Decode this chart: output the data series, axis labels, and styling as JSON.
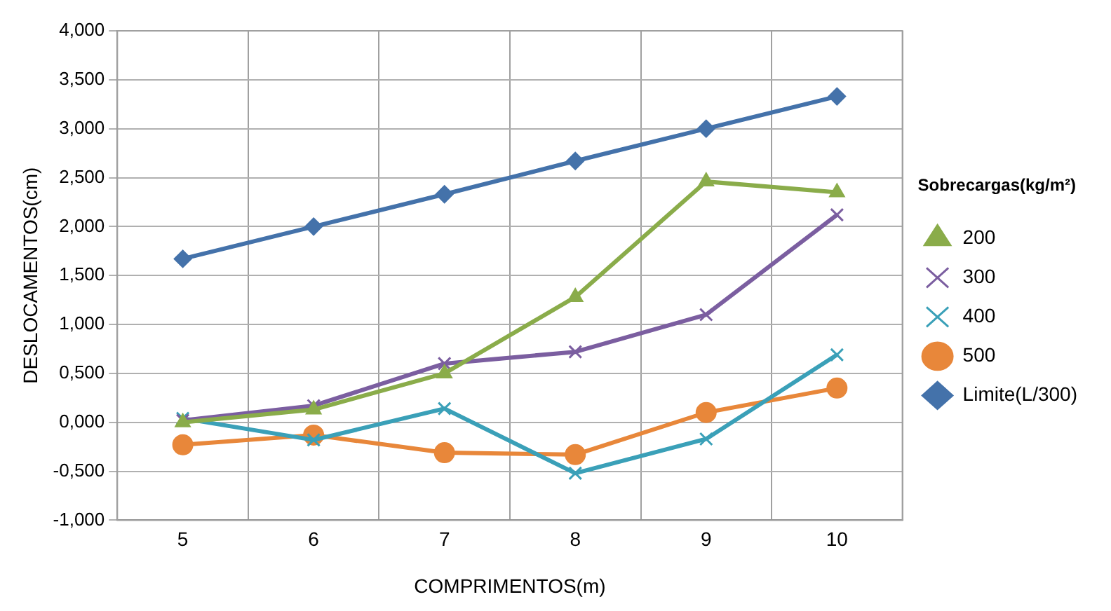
{
  "chart_data": {
    "type": "line",
    "xlabel": "COMPRIMENTOS(m)",
    "ylabel": "DESLOCAMENTOS(cm)",
    "legend_title": "Sobrecargas(kg/m²)",
    "categories": [
      "5",
      "6",
      "7",
      "8",
      "9",
      "10"
    ],
    "ylim": [
      -1,
      4
    ],
    "yticks": [
      {
        "value": -1,
        "label": "-1,000"
      },
      {
        "value": -0.5,
        "label": "-0,500"
      },
      {
        "value": 0,
        "label": "0,000"
      },
      {
        "value": 0.5,
        "label": "0,500"
      },
      {
        "value": 1,
        "label": "1,000"
      },
      {
        "value": 1.5,
        "label": "1,500"
      },
      {
        "value": 2,
        "label": "2,000"
      },
      {
        "value": 2.5,
        "label": "2,500"
      },
      {
        "value": 3,
        "label": "3,000"
      },
      {
        "value": 3.5,
        "label": "3,500"
      },
      {
        "value": 4,
        "label": "4,000"
      }
    ],
    "grid": true,
    "legend": "right",
    "line_style": "solid",
    "series": [
      {
        "name": "200",
        "color": "#8aac4a",
        "marker": "triangle",
        "values": [
          0,
          0.13,
          0.5,
          1.28,
          2.46,
          2.35
        ]
      },
      {
        "name": "300",
        "color": "#7b5ea0",
        "marker": "cross",
        "values": [
          0.02,
          0.17,
          0.6,
          0.72,
          1.1,
          2.12
        ]
      },
      {
        "name": "400",
        "color": "#3aa0b8",
        "marker": "cross",
        "values": [
          0.04,
          -0.18,
          0.14,
          -0.52,
          -0.17,
          0.69
        ]
      },
      {
        "name": "500",
        "color": "#e8873a",
        "marker": "circle",
        "values": [
          -0.23,
          -0.13,
          -0.31,
          -0.33,
          0.1,
          0.35
        ]
      },
      {
        "name": "Limite(L/300)",
        "color": "#4472aa",
        "marker": "diamond",
        "values": [
          1.67,
          2,
          2.33,
          2.67,
          3,
          3.33
        ]
      }
    ]
  }
}
